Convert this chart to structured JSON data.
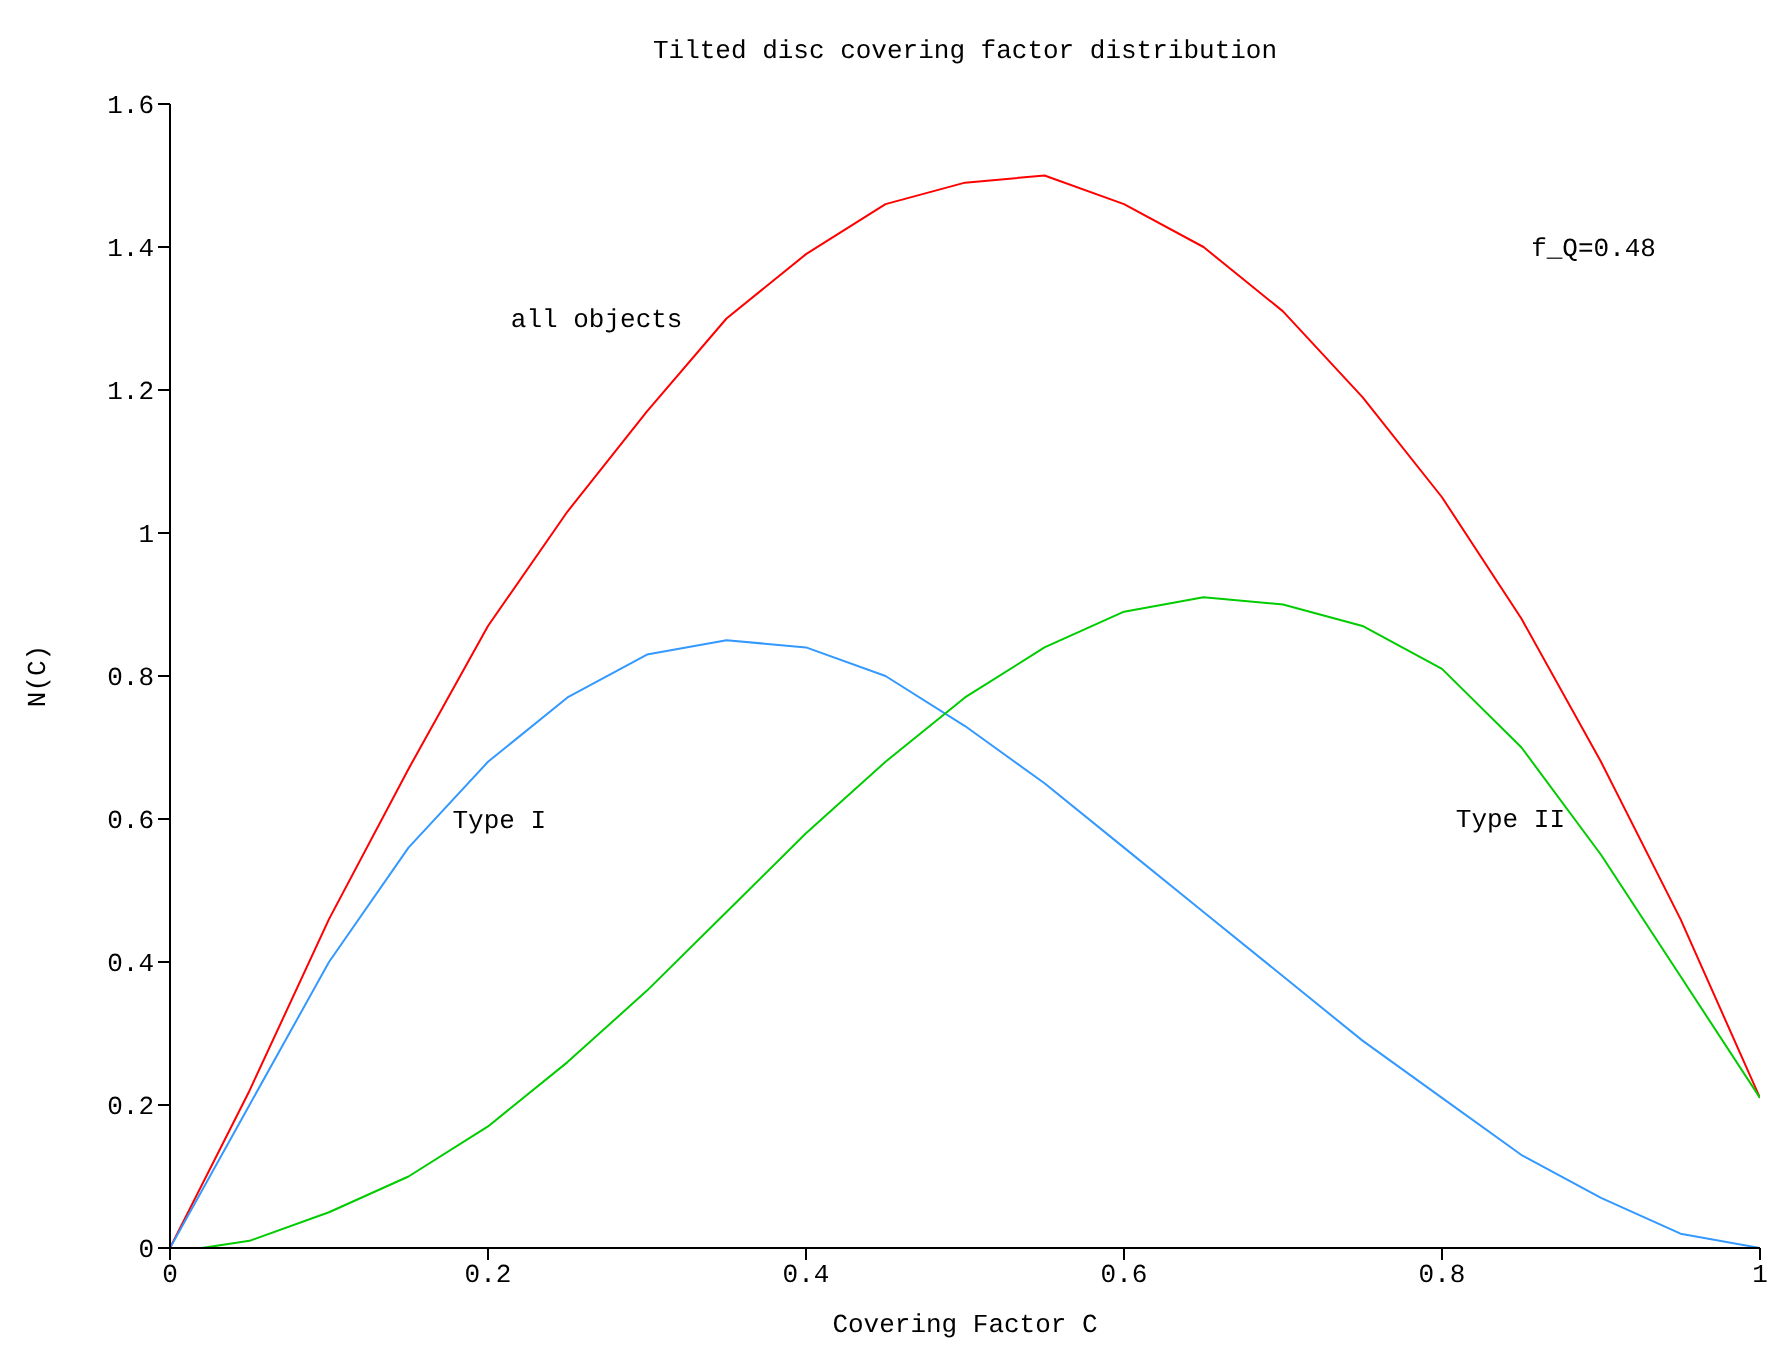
{
  "chart_data": {
    "type": "line",
    "title": "Tilted disc covering factor distribution",
    "xlabel": "Covering Factor C",
    "ylabel": "N(C)",
    "xlim": [
      0,
      1
    ],
    "xticks": [
      0,
      0.2,
      0.4,
      0.6,
      0.8,
      1
    ],
    "ylim": [
      0,
      1.6
    ],
    "yticks": [
      0,
      0.2,
      0.4,
      0.6,
      0.8,
      1,
      1.2,
      1.4,
      1.6
    ],
    "grid": false,
    "legend": false,
    "marker": "none",
    "line_style": "solid",
    "series": [
      {
        "name": "all objects",
        "color": "#ff0000",
        "x": [
          0,
          0.05,
          0.1,
          0.15,
          0.2,
          0.25,
          0.3,
          0.35,
          0.4,
          0.45,
          0.5,
          0.55,
          0.6,
          0.65,
          0.7,
          0.75,
          0.8,
          0.85,
          0.9,
          0.95,
          1
        ],
        "values": [
          0,
          0.22,
          0.46,
          0.67,
          0.87,
          1.03,
          1.17,
          1.3,
          1.39,
          1.46,
          1.49,
          1.5,
          1.46,
          1.4,
          1.31,
          1.19,
          1.05,
          0.88,
          0.68,
          0.46,
          0.21
        ]
      },
      {
        "name": "Type I",
        "color": "#3399ff",
        "x": [
          0,
          0.05,
          0.1,
          0.15,
          0.2,
          0.25,
          0.3,
          0.35,
          0.4,
          0.45,
          0.5,
          0.55,
          0.6,
          0.65,
          0.7,
          0.75,
          0.8,
          0.85,
          0.9,
          0.95,
          1
        ],
        "values": [
          0,
          0.2,
          0.4,
          0.56,
          0.68,
          0.77,
          0.83,
          0.85,
          0.84,
          0.8,
          0.73,
          0.65,
          0.56,
          0.47,
          0.38,
          0.29,
          0.21,
          0.13,
          0.07,
          0.02,
          0
        ]
      },
      {
        "name": "Type II",
        "color": "#00cc00",
        "x": [
          0.02,
          0.05,
          0.1,
          0.15,
          0.2,
          0.25,
          0.3,
          0.35,
          0.4,
          0.45,
          0.5,
          0.55,
          0.6,
          0.65,
          0.7,
          0.75,
          0.8,
          0.85,
          0.9,
          0.95,
          1
        ],
        "values": [
          0,
          0.01,
          0.05,
          0.1,
          0.17,
          0.26,
          0.36,
          0.47,
          0.58,
          0.68,
          0.77,
          0.84,
          0.89,
          0.91,
          0.9,
          0.87,
          0.81,
          0.7,
          0.55,
          0.38,
          0.21
        ]
      }
    ],
    "annotations": [
      "f_Q=0.48"
    ]
  }
}
